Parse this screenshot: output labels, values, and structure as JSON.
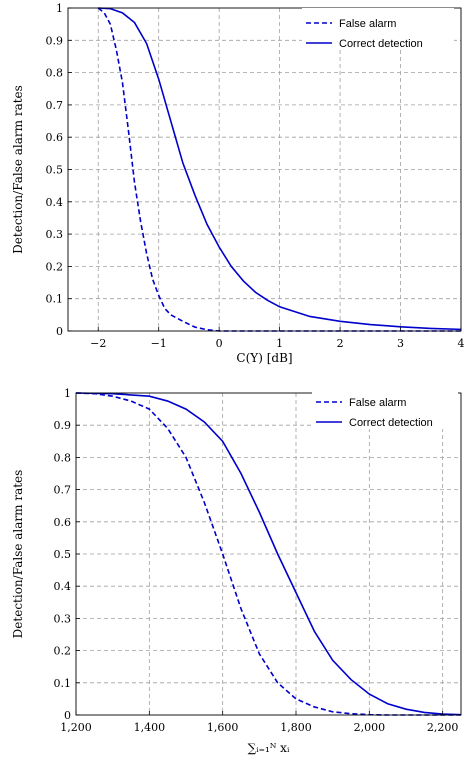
{
  "chart_data": [
    {
      "type": "line",
      "xlabel": "C(Y) [dB]",
      "ylabel": "Detection/False alarm rates",
      "xlim": [
        -2.5,
        4
      ],
      "ylim": [
        0,
        1
      ],
      "x_ticks": [
        "−2",
        "−1",
        "0",
        "1",
        "2",
        "3",
        "4"
      ],
      "y_ticks": [
        "0",
        "0.1",
        "0.2",
        "0.3",
        "0.4",
        "0.5",
        "0.6",
        "0.7",
        "0.8",
        "0.9",
        "1"
      ],
      "grid": true,
      "legend_position": "top-right",
      "series": [
        {
          "name": "False alarm",
          "style": "dashed",
          "color": "#0000cc",
          "points": [
            [
              -2.0,
              1.0
            ],
            [
              -1.9,
              0.985
            ],
            [
              -1.8,
              0.95
            ],
            [
              -1.7,
              0.87
            ],
            [
              -1.6,
              0.77
            ],
            [
              -1.5,
              0.62
            ],
            [
              -1.4,
              0.46
            ],
            [
              -1.3,
              0.34
            ],
            [
              -1.2,
              0.24
            ],
            [
              -1.1,
              0.16
            ],
            [
              -1.0,
              0.11
            ],
            [
              -0.9,
              0.07
            ],
            [
              -0.8,
              0.05
            ],
            [
              -0.6,
              0.03
            ],
            [
              -0.4,
              0.012
            ],
            [
              -0.2,
              0.004
            ],
            [
              0.0,
              0.0
            ],
            [
              1.0,
              0.0
            ],
            [
              2.0,
              0.0
            ],
            [
              3.0,
              0.0
            ],
            [
              4.0,
              0.0
            ]
          ]
        },
        {
          "name": "Correct detection",
          "style": "solid",
          "color": "#0000cc",
          "points": [
            [
              -2.0,
              1.0
            ],
            [
              -1.8,
              0.998
            ],
            [
              -1.6,
              0.985
            ],
            [
              -1.4,
              0.955
            ],
            [
              -1.2,
              0.89
            ],
            [
              -1.0,
              0.78
            ],
            [
              -0.8,
              0.65
            ],
            [
              -0.6,
              0.52
            ],
            [
              -0.4,
              0.42
            ],
            [
              -0.2,
              0.33
            ],
            [
              0.0,
              0.26
            ],
            [
              0.2,
              0.2
            ],
            [
              0.4,
              0.155
            ],
            [
              0.6,
              0.12
            ],
            [
              0.8,
              0.095
            ],
            [
              1.0,
              0.075
            ],
            [
              1.5,
              0.045
            ],
            [
              2.0,
              0.03
            ],
            [
              2.5,
              0.02
            ],
            [
              3.0,
              0.013
            ],
            [
              3.5,
              0.008
            ],
            [
              4.0,
              0.005
            ]
          ]
        }
      ]
    },
    {
      "type": "line",
      "xlabel": "∑ᵢ₌₁ᴺ xᵢ",
      "ylabel": "Detection/False alarm rates",
      "xlim": [
        1200,
        2250
      ],
      "ylim": [
        0,
        1
      ],
      "x_ticks": [
        "1,200",
        "1,400",
        "1,600",
        "1,800",
        "2,000",
        "2,200"
      ],
      "y_ticks": [
        "0",
        "0.1",
        "0.2",
        "0.3",
        "0.4",
        "0.5",
        "0.6",
        "0.7",
        "0.8",
        "0.9",
        "1"
      ],
      "grid": true,
      "legend_position": "top-right",
      "series": [
        {
          "name": "False alarm",
          "style": "dashed",
          "color": "#0000cc",
          "points": [
            [
              1200,
              1.0
            ],
            [
              1250,
              0.998
            ],
            [
              1300,
              0.99
            ],
            [
              1350,
              0.975
            ],
            [
              1400,
              0.95
            ],
            [
              1450,
              0.89
            ],
            [
              1500,
              0.8
            ],
            [
              1550,
              0.66
            ],
            [
              1600,
              0.5
            ],
            [
              1650,
              0.33
            ],
            [
              1700,
              0.19
            ],
            [
              1750,
              0.1
            ],
            [
              1800,
              0.05
            ],
            [
              1850,
              0.025
            ],
            [
              1900,
              0.01
            ],
            [
              1950,
              0.004
            ],
            [
              2000,
              0.001
            ],
            [
              2050,
              0.0
            ],
            [
              2250,
              0.0
            ]
          ]
        },
        {
          "name": "Correct detection",
          "style": "solid",
          "color": "#0000cc",
          "points": [
            [
              1200,
              1.0
            ],
            [
              1300,
              0.998
            ],
            [
              1400,
              0.99
            ],
            [
              1450,
              0.975
            ],
            [
              1500,
              0.95
            ],
            [
              1550,
              0.91
            ],
            [
              1600,
              0.85
            ],
            [
              1650,
              0.75
            ],
            [
              1700,
              0.63
            ],
            [
              1750,
              0.5
            ],
            [
              1800,
              0.38
            ],
            [
              1850,
              0.26
            ],
            [
              1900,
              0.17
            ],
            [
              1950,
              0.11
            ],
            [
              2000,
              0.065
            ],
            [
              2050,
              0.035
            ],
            [
              2100,
              0.018
            ],
            [
              2150,
              0.008
            ],
            [
              2200,
              0.003
            ],
            [
              2250,
              0.001
            ]
          ]
        }
      ]
    }
  ]
}
